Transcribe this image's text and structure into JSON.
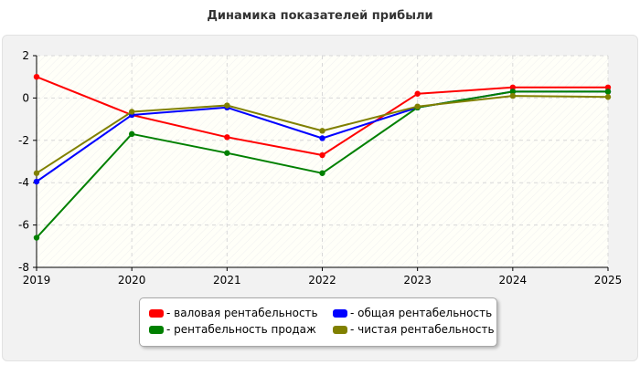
{
  "title": "Динамика показателей прибыли",
  "chart_data": {
    "type": "line",
    "title": "Динамика показателей прибыли",
    "x": [
      "2019",
      "2020",
      "2021",
      "2022",
      "2023",
      "2024",
      "2025"
    ],
    "ylim": [
      -8,
      2
    ],
    "yticks": [
      2,
      0,
      -2,
      -4,
      -6,
      -8
    ],
    "grid": true,
    "legend_position": "bottom",
    "series": [
      {
        "name": "- валовая рентабельность",
        "color": "#ff0000",
        "values": [
          1.0,
          -0.8,
          -1.85,
          -2.7,
          0.2,
          0.5,
          0.5
        ]
      },
      {
        "name": "- общая рентабельность",
        "color": "#0000ff",
        "values": [
          -3.95,
          -0.8,
          -0.45,
          -1.9,
          -0.45,
          0.3,
          0.3
        ]
      },
      {
        "name": "- рентабельность продаж",
        "color": "#008000",
        "values": [
          -6.6,
          -1.7,
          -2.6,
          -3.55,
          -0.45,
          0.3,
          0.3
        ]
      },
      {
        "name": "- чистая рентабельность",
        "color": "#808000",
        "values": [
          -3.55,
          -0.65,
          -0.35,
          -1.55,
          -0.4,
          0.1,
          0.05
        ]
      }
    ]
  }
}
